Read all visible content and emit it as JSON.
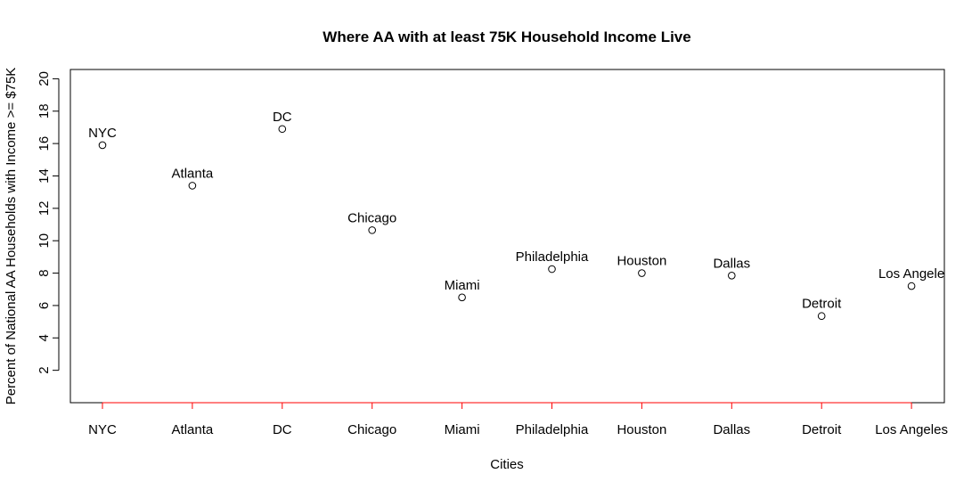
{
  "chart_data": {
    "type": "scatter",
    "title": "Where AA with at least 75K Household Income Live",
    "xlabel": "Cities",
    "ylabel": "Percent of National AA Households with Income >= $75K",
    "categories": [
      "NYC",
      "Atlanta",
      "DC",
      "Chicago",
      "Miami",
      "Philadelphia",
      "Houston",
      "Dallas",
      "Detroit",
      "Los Angeles"
    ],
    "point_labels": [
      "NYC",
      "Atlanta",
      "DC",
      "Chicago",
      "Miami",
      "Philadelphia",
      "Houston",
      "Dallas",
      "Detroit",
      "Los Angele"
    ],
    "values": [
      15.9,
      13.4,
      16.9,
      10.65,
      6.5,
      8.25,
      8.0,
      7.85,
      5.35,
      7.2
    ],
    "ylim": [
      0,
      20.7
    ],
    "yticks": [
      2,
      4,
      6,
      8,
      10,
      12,
      14,
      16,
      18,
      20
    ],
    "grid": false,
    "legend": "none",
    "colors": {
      "point_stroke": "#000000",
      "x_axis": "#ff0000",
      "frame": "#000000"
    }
  }
}
